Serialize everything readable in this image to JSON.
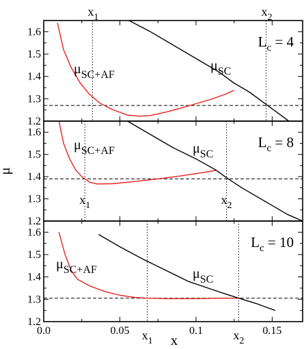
{
  "chart_data": [
    {
      "type": "line",
      "panel_label": "L",
      "panel_label_sub": "c",
      "panel_value": " = 4",
      "xlabel": "x",
      "ylabel": "μ",
      "xlim": [
        0,
        0.17
      ],
      "ylim": [
        1.2,
        1.65
      ],
      "y_ticks": [
        "1.2",
        "1.3",
        "1.4",
        "1.5",
        "1.6"
      ],
      "x_ticks": [],
      "hline": 1.27,
      "vlines": [
        {
          "x": 0.032,
          "label": "x",
          "sub": "1",
          "label_pos": "top"
        },
        {
          "x": 0.146,
          "label": "x",
          "sub": "2",
          "label_pos": "top"
        }
      ],
      "series": [
        {
          "name": "μ",
          "name_sub": "SC+AF",
          "color": "#e8201c",
          "x": [
            0.009,
            0.013,
            0.018,
            0.024,
            0.03,
            0.037,
            0.045,
            0.055,
            0.063,
            0.07,
            0.08,
            0.09,
            0.1,
            0.11,
            0.12,
            0.125
          ],
          "y": [
            1.64,
            1.52,
            1.44,
            1.37,
            1.32,
            1.28,
            1.252,
            1.227,
            1.222,
            1.225,
            1.24,
            1.258,
            1.278,
            1.298,
            1.322,
            1.338
          ]
        },
        {
          "name": "μ",
          "name_sub": "SC",
          "color": "#000000",
          "x": [
            0.056,
            0.07,
            0.085,
            0.1,
            0.115,
            0.125,
            0.135,
            0.145,
            0.155,
            0.161
          ],
          "y": [
            1.65,
            1.6,
            1.54,
            1.48,
            1.42,
            1.37,
            1.33,
            1.28,
            1.23,
            1.2
          ]
        }
      ]
    },
    {
      "type": "line",
      "panel_label": "L",
      "panel_label_sub": "c",
      "panel_value": " = 8",
      "xlabel": "x",
      "ylabel": "μ",
      "xlim": [
        0,
        0.17
      ],
      "ylim": [
        1.2,
        1.65
      ],
      "y_ticks": [
        "1.2",
        "1.3",
        "1.4",
        "1.5",
        "1.6"
      ],
      "x_ticks": [],
      "hline": 1.39,
      "vlines": [
        {
          "x": 0.027,
          "label": "x",
          "sub": "1",
          "label_pos": "bottom"
        },
        {
          "x": 0.12,
          "label": "x",
          "sub": "2",
          "label_pos": "bottom"
        }
      ],
      "series": [
        {
          "name": "μ",
          "name_sub": "SC+AF",
          "color": "#e8201c",
          "x": [
            0.01,
            0.013,
            0.017,
            0.021,
            0.025,
            0.03,
            0.035,
            0.045,
            0.06,
            0.075,
            0.09,
            0.105,
            0.113
          ],
          "y": [
            1.65,
            1.55,
            1.48,
            1.43,
            1.4,
            1.375,
            1.367,
            1.368,
            1.378,
            1.39,
            1.403,
            1.419,
            1.428
          ]
        },
        {
          "name": "μ",
          "name_sub": "SC",
          "color": "#000000",
          "x": [
            0.055,
            0.07,
            0.085,
            0.1,
            0.113,
            0.12,
            0.13,
            0.14,
            0.15,
            0.16,
            0.17
          ],
          "y": [
            1.65,
            1.59,
            1.53,
            1.48,
            1.43,
            1.395,
            1.35,
            1.31,
            1.27,
            1.23,
            1.2
          ]
        }
      ]
    },
    {
      "type": "line",
      "panel_label": "L",
      "panel_label_sub": "c",
      "panel_value": " = 10",
      "xlabel": "x",
      "ylabel": "μ",
      "xlim": [
        0,
        0.17
      ],
      "ylim": [
        1.2,
        1.65
      ],
      "y_ticks": [
        "1.2",
        "1.3",
        "1.4",
        "1.5",
        "1.6"
      ],
      "x_ticks": [
        "0.0",
        "0.05",
        "0.1",
        "0.15"
      ],
      "x_tick_values": [
        0,
        0.05,
        0.1,
        0.15
      ],
      "hline": 1.305,
      "vlines": [
        {
          "x": 0.068,
          "label": "x",
          "sub": "1",
          "label_pos": "bottom"
        },
        {
          "x": 0.128,
          "label": "x",
          "sub": "2",
          "label_pos": "bottom"
        }
      ],
      "series": [
        {
          "name": "μ",
          "name_sub": "SC+AF",
          "color": "#e8201c",
          "x": [
            0.01,
            0.014,
            0.018,
            0.022,
            0.03,
            0.04,
            0.05,
            0.06,
            0.068,
            0.08,
            0.1,
            0.12,
            0.128
          ],
          "y": [
            1.6,
            1.5,
            1.43,
            1.39,
            1.36,
            1.335,
            1.318,
            1.308,
            1.305,
            1.303,
            1.303,
            1.305,
            1.305
          ]
        },
        {
          "name": "μ",
          "name_sub": "SC",
          "color": "#000000",
          "x": [
            0.036,
            0.05,
            0.065,
            0.08,
            0.095,
            0.11,
            0.12,
            0.128,
            0.14,
            0.152
          ],
          "y": [
            1.59,
            1.535,
            1.48,
            1.43,
            1.38,
            1.345,
            1.322,
            1.305,
            1.28,
            1.25
          ]
        }
      ]
    }
  ]
}
